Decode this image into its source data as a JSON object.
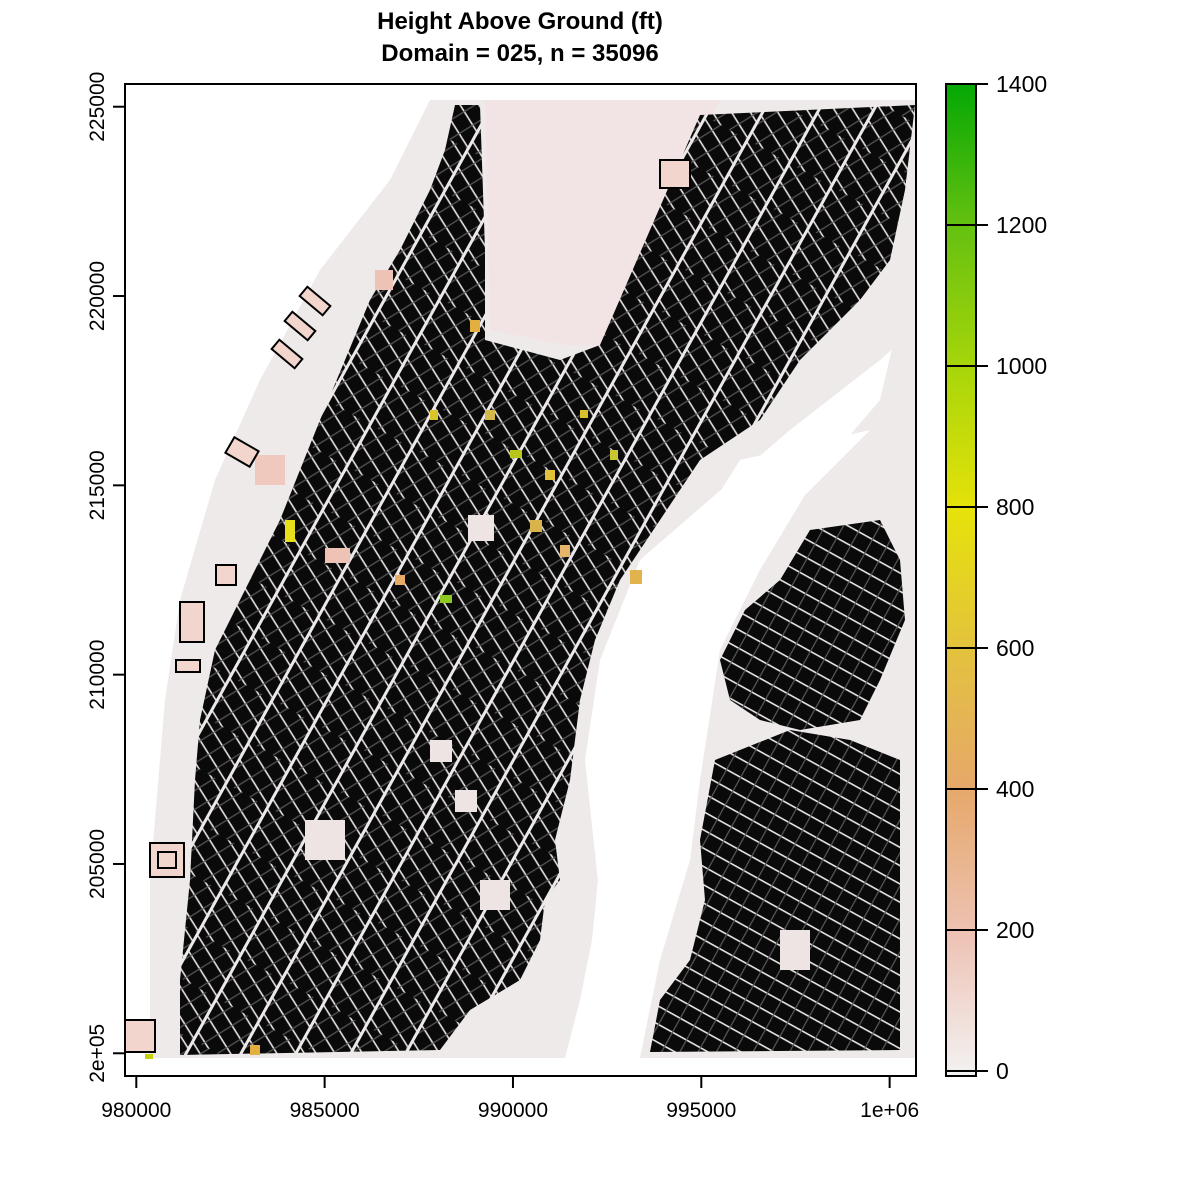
{
  "title": "Height Above Ground (ft)",
  "subtitle": "Domain = 025, n = 35096",
  "chart_data": {
    "type": "heatmap",
    "description_of_values": "raster of building height above ground (ft) with building footprint outlines",
    "x_ticks": [
      "980000",
      "985000",
      "990000",
      "995000",
      "1e+06"
    ],
    "x_tick_values": [
      980000,
      985000,
      990000,
      995000,
      1000000
    ],
    "y_ticks": [
      "2e+05",
      "205000",
      "210000",
      "215000",
      "220000",
      "225000"
    ],
    "y_tick_values": [
      200000,
      205000,
      210000,
      215000,
      220000,
      225000
    ],
    "xlim": [
      979700,
      1000700
    ],
    "ylim": [
      199400,
      225600
    ],
    "colorbar": {
      "ticks": [
        "0",
        "200",
        "400",
        "600",
        "800",
        "1000",
        "1200",
        "1400"
      ],
      "tick_values": [
        0,
        200,
        400,
        600,
        800,
        1000,
        1200,
        1400
      ],
      "range": [
        0,
        1400
      ],
      "colors": [
        "#f2f2f2",
        "#eec3b5",
        "#e6a86a",
        "#e3c23d",
        "#e6e20a",
        "#a9d60a",
        "#63c010",
        "#04a804"
      ]
    }
  }
}
